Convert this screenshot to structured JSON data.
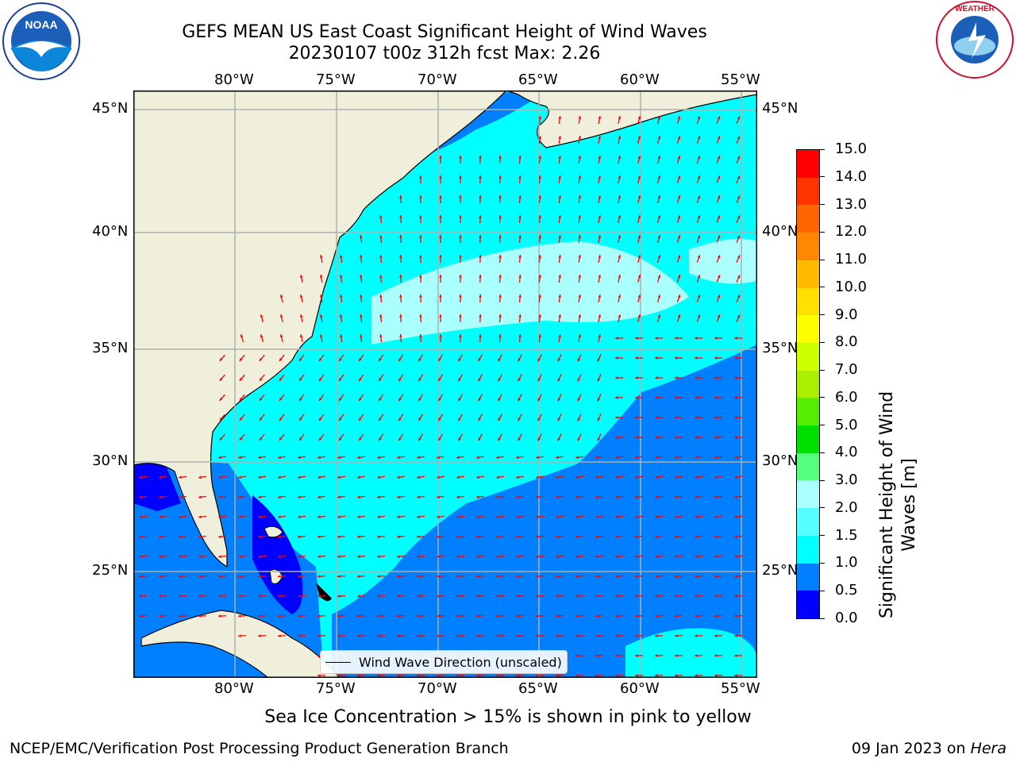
{
  "header": {
    "title_line1": "GEFS MEAN US East Coast Significant Height of Wind Waves",
    "title_line2": "20230107 t00z 312h fcst   Max: 2.26"
  },
  "logos": {
    "left": "NOAA",
    "right": "NATIONAL WEATHER SERVICE"
  },
  "map": {
    "lon_labels": [
      "80°W",
      "75°W",
      "70°W",
      "65°W",
      "60°W",
      "55°W"
    ],
    "lat_labels": [
      "45°N",
      "40°N",
      "35°N",
      "30°N",
      "25°N"
    ],
    "legend_label": "Wind Wave Direction (unscaled)",
    "colors": {
      "land": "#efefdc",
      "ocean_low": "#0080ff",
      "ocean_mid": "#00ffff",
      "ocean_high": "#aaffff",
      "arrow": "#ff0000",
      "grid": "#b0b0b0"
    }
  },
  "colorbar": {
    "label_line1": "Significant Height of Wind",
    "label_line2": "Waves [m]",
    "ticks": [
      "0.0",
      "0.5",
      "1.0",
      "1.5",
      "2.0",
      "3.0",
      "4.0",
      "5.0",
      "6.0",
      "7.0",
      "8.0",
      "9.0",
      "10.0",
      "11.0",
      "12.0",
      "13.0",
      "14.0",
      "15.0"
    ],
    "colors": [
      "#0000ff",
      "#0080ff",
      "#00ffff",
      "#55ffff",
      "#aaffff",
      "#55ff80",
      "#00e000",
      "#55ee00",
      "#aaee00",
      "#ccff00",
      "#ffff00",
      "#ffe000",
      "#ffbb00",
      "#ff8800",
      "#ff6600",
      "#ff3300",
      "#ff0000"
    ]
  },
  "footer": {
    "note": "Sea Ice Concentration > 15% is shown in pink to yellow",
    "left": "NCEP/EMC/Verification Post Processing Product Generation Branch",
    "date": "09 Jan 2023 on ",
    "host": "Hera"
  }
}
